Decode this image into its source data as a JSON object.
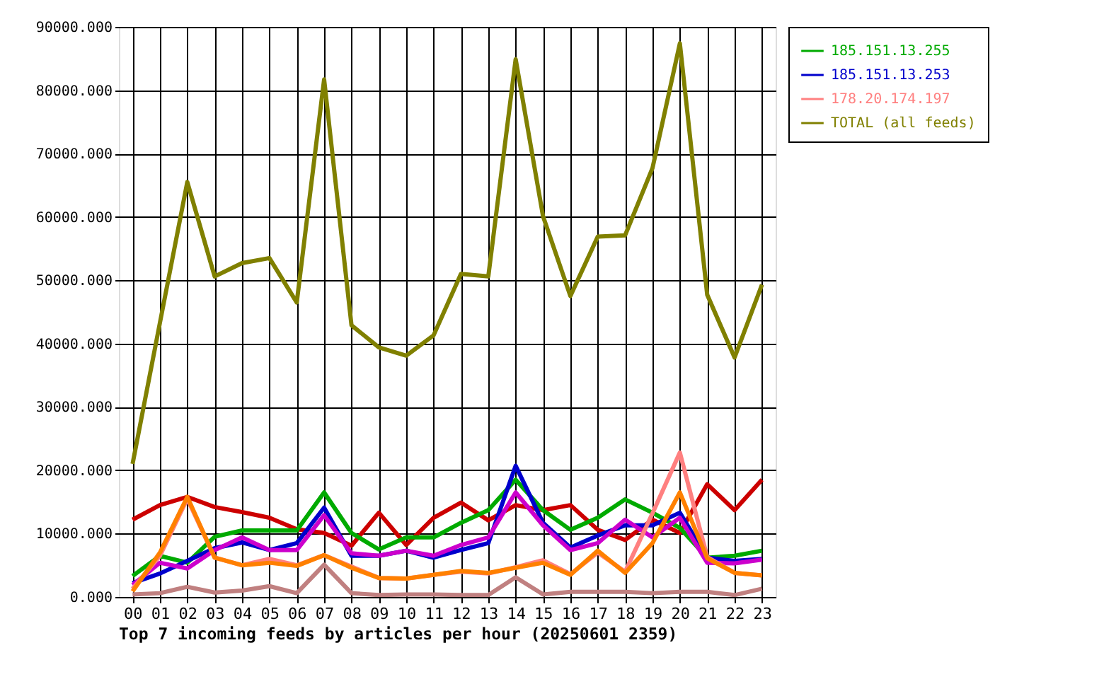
{
  "chart_data": {
    "type": "line",
    "title": "Top 7 incoming feeds by articles per hour (20250601 2359)",
    "categories": [
      "00",
      "01",
      "02",
      "03",
      "04",
      "05",
      "06",
      "07",
      "08",
      "09",
      "10",
      "11",
      "12",
      "13",
      "14",
      "15",
      "16",
      "17",
      "18",
      "19",
      "20",
      "21",
      "22",
      "23"
    ],
    "series": [
      {
        "color": "#cc0000",
        "values": [
          12200,
          14500,
          15800,
          14200,
          13400,
          12500,
          10700,
          10100,
          8100,
          13300,
          8200,
          12500,
          14900,
          12100,
          14500,
          13700,
          14500,
          10600,
          9000,
          12200,
          10100,
          17800,
          13700,
          18500
        ]
      },
      {
        "name": "185.151.13.255",
        "color": "#00aa00",
        "values": [
          3300,
          6500,
          5400,
          9500,
          10500,
          10500,
          10500,
          16500,
          10100,
          7500,
          9400,
          9400,
          11700,
          13700,
          18500,
          13700,
          10600,
          12500,
          15400,
          13300,
          10900,
          6200,
          6500,
          7300
        ]
      },
      {
        "name": "185.151.13.253",
        "color": "#0000cc",
        "values": [
          2200,
          3700,
          5700,
          7700,
          8600,
          7400,
          8500,
          14100,
          6500,
          6500,
          7300,
          6200,
          7400,
          8500,
          20700,
          11700,
          7800,
          9700,
          11300,
          11300,
          13300,
          6200,
          5700,
          6000
        ]
      },
      {
        "color": "#cc00cc",
        "values": [
          1900,
          5400,
          4500,
          7400,
          9400,
          7400,
          7400,
          12900,
          6900,
          6500,
          7300,
          6500,
          8200,
          9400,
          16500,
          11300,
          7400,
          8500,
          12200,
          9400,
          12500,
          5400,
          5300,
          5900
        ]
      },
      {
        "name": "178.20.174.197",
        "color": "#ff8080",
        "values": [
          1300,
          6500,
          15500,
          6200,
          5000,
          6000,
          5000,
          6600,
          4800,
          3000,
          2900,
          3500,
          4000,
          3700,
          4700,
          5800,
          3600,
          7000,
          4000,
          13200,
          22800,
          6300,
          3800,
          3400
        ]
      },
      {
        "color": "#ff8000",
        "values": [
          900,
          7000,
          15800,
          6200,
          5000,
          5400,
          4900,
          6600,
          4600,
          3000,
          2900,
          3500,
          4100,
          3800,
          4600,
          5400,
          3500,
          7300,
          3800,
          8500,
          16500,
          6100,
          3800,
          3400
        ]
      },
      {
        "color": "#c08080",
        "values": [
          400,
          600,
          1600,
          700,
          1000,
          1700,
          600,
          5100,
          600,
          300,
          400,
          400,
          300,
          300,
          3100,
          400,
          800,
          800,
          800,
          600,
          800,
          800,
          300,
          1300
        ]
      },
      {
        "name": "TOTAL (all feeds)",
        "color": "#808000",
        "values": [
          21000,
          43300,
          65500,
          50600,
          52700,
          53500,
          46500,
          81700,
          42900,
          39400,
          38100,
          41300,
          51000,
          50600,
          84900,
          60100,
          47500,
          56900,
          57100,
          67700,
          87400,
          47700,
          37800,
          49300
        ]
      }
    ],
    "ylim": [
      0,
      90000
    ],
    "yticks": [
      {
        "value": 0,
        "label": "0.000"
      },
      {
        "value": 10000,
        "label": "10000.000"
      },
      {
        "value": 20000,
        "label": "20000.000"
      },
      {
        "value": 30000,
        "label": "30000.000"
      },
      {
        "value": 40000,
        "label": "40000.000"
      },
      {
        "value": 50000,
        "label": "50000.000"
      },
      {
        "value": 60000,
        "label": "60000.000"
      },
      {
        "value": 70000,
        "label": "70000.000"
      },
      {
        "value": 80000,
        "label": "80000.000"
      },
      {
        "value": 90000,
        "label": "90000.000"
      }
    ],
    "grid": true,
    "legend": "top right"
  }
}
